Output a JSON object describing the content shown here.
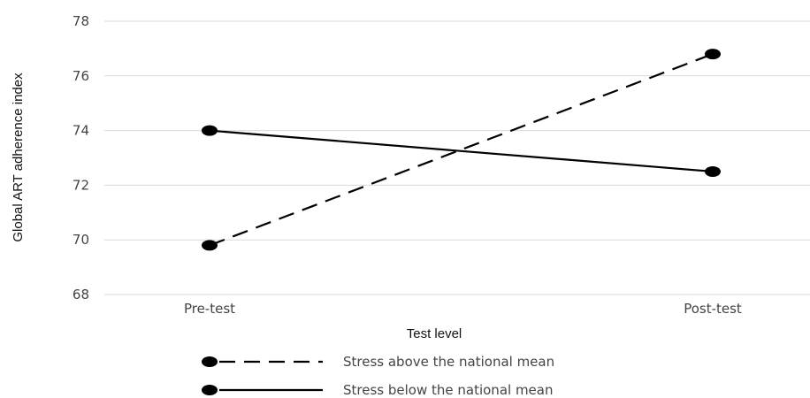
{
  "chart_data": {
    "type": "line",
    "title": "",
    "xlabel": "Test level",
    "ylabel": "Global ART adherence index",
    "categories": [
      "Pre-test",
      "Post-test"
    ],
    "ylim": [
      68,
      78
    ],
    "yticks": [
      68,
      70,
      72,
      74,
      76,
      78
    ],
    "grid": "horizontal",
    "legend_position": "bottom",
    "series": [
      {
        "name": "Stress above the national mean",
        "values": [
          69.8,
          76.8
        ],
        "line_style": "dashed",
        "color": "#000000"
      },
      {
        "name": "Stress below the national mean",
        "values": [
          74.0,
          72.5
        ],
        "line_style": "solid",
        "color": "#000000"
      }
    ]
  }
}
